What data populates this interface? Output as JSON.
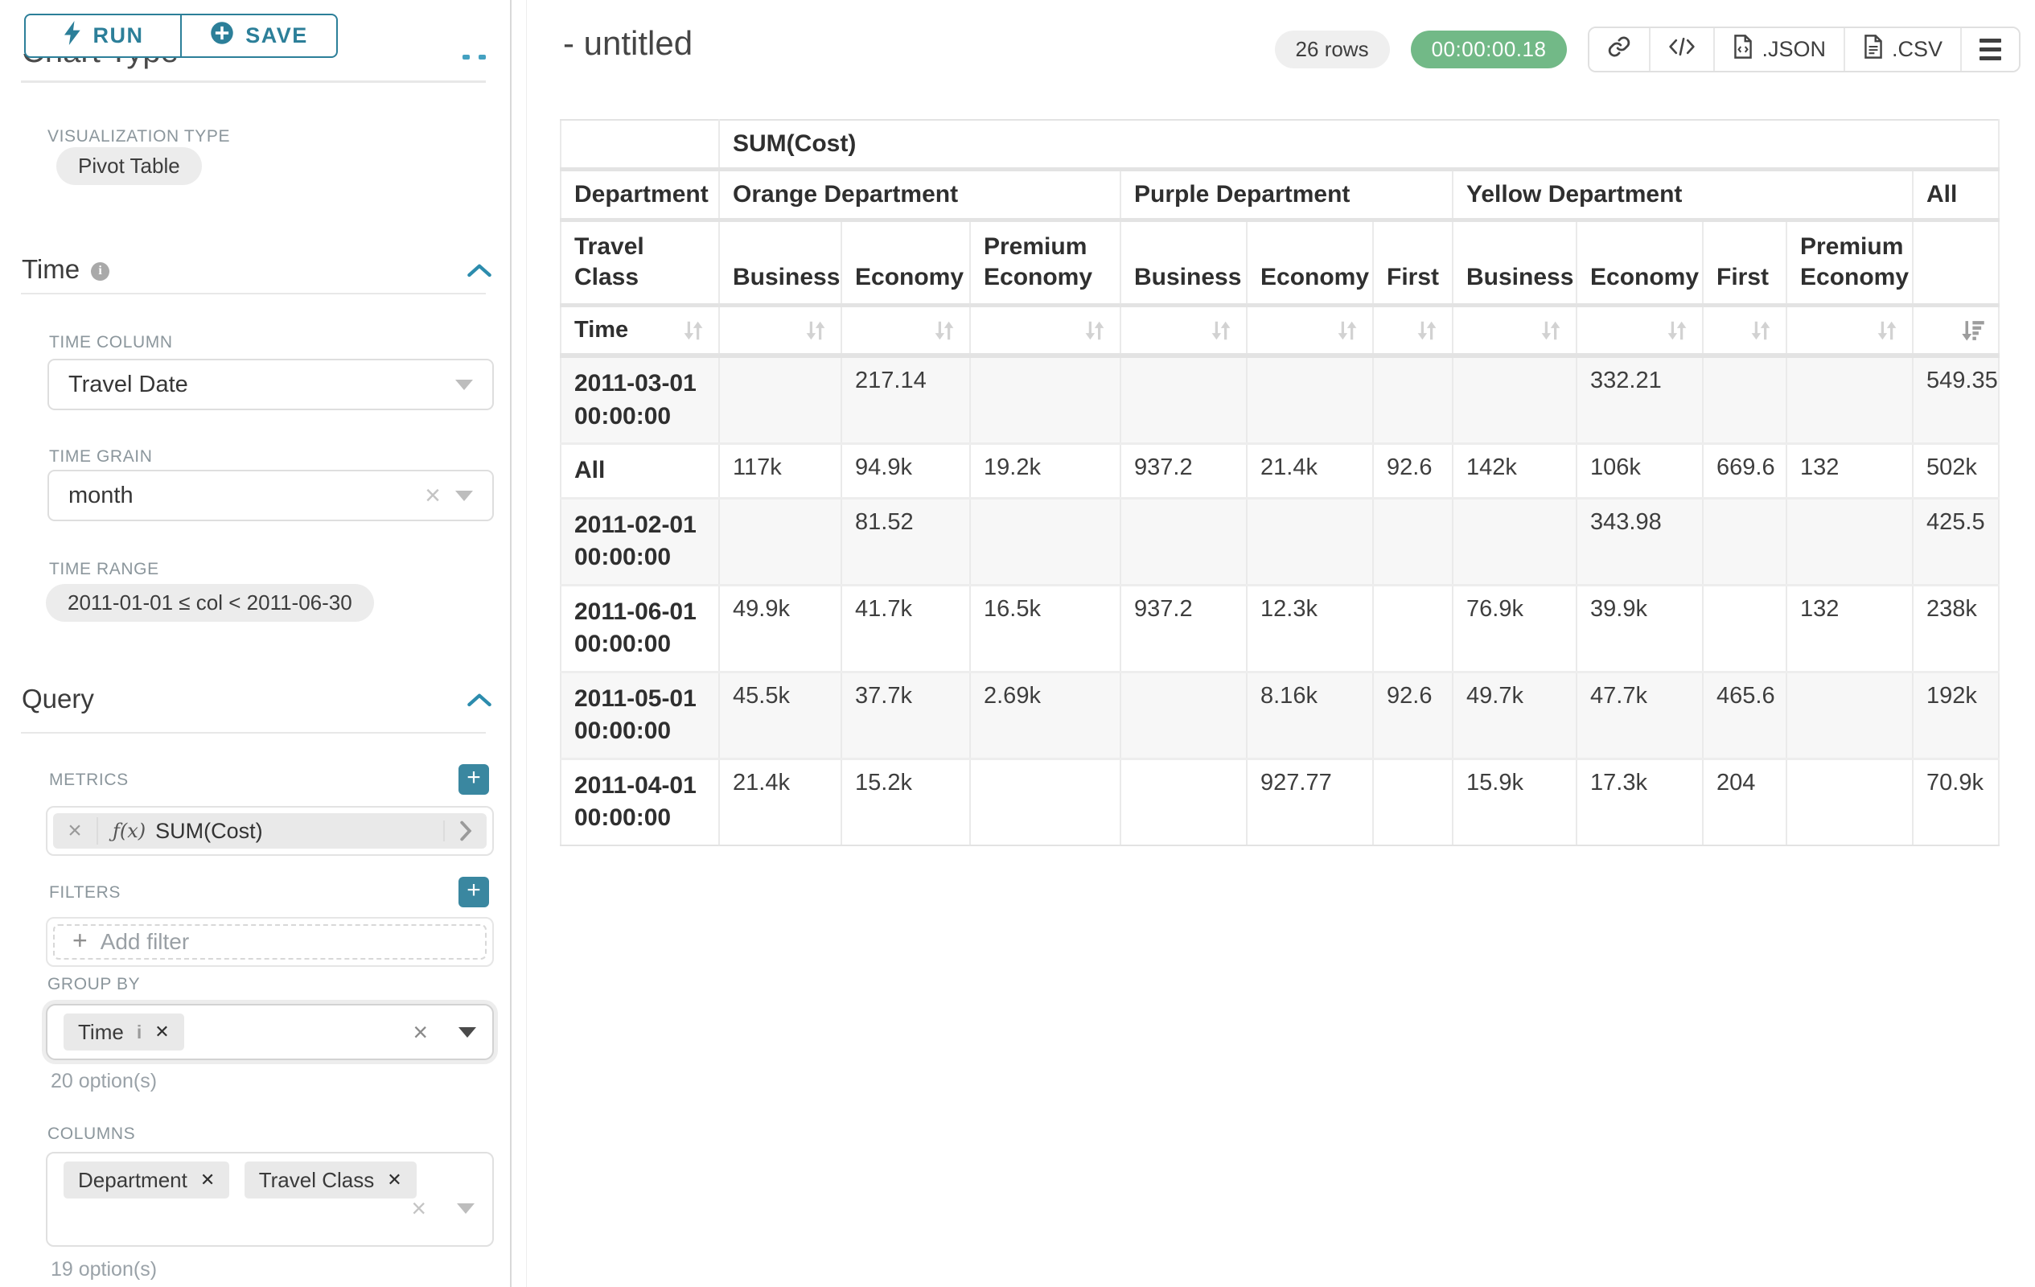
{
  "sidebar": {
    "run_button": "RUN",
    "save_button": "SAVE",
    "chart_type_heading": "Chart Type",
    "viz_label": "VISUALIZATION TYPE",
    "viz_value": "Pivot Table",
    "time": {
      "title": "Time",
      "time_column_label": "TIME COLUMN",
      "time_column_value": "Travel Date",
      "time_grain_label": "TIME GRAIN",
      "time_grain_value": "month",
      "time_range_label": "TIME RANGE",
      "time_range_value": "2011-01-01 ≤ col < 2011-06-30"
    },
    "query": {
      "title": "Query",
      "metrics_label": "METRICS",
      "metric_fx": "ƒ(x)",
      "metric_value": "SUM(Cost)",
      "filters_label": "FILTERS",
      "add_filter_label": "Add filter",
      "group_by_label": "GROUP BY",
      "group_by_chips": [
        "Time"
      ],
      "group_by_count": "20 option(s)",
      "columns_label": "COLUMNS",
      "columns_chips": [
        "Department",
        "Travel Class"
      ],
      "columns_count": "19 option(s)"
    }
  },
  "main": {
    "title": "- untitled",
    "rows_badge": "26 rows",
    "timer_badge": "00:00:00.18",
    "json_label": ".JSON",
    "csv_label": ".CSV"
  },
  "chart_data": {
    "type": "table",
    "metric_header": "SUM(Cost)",
    "dimension_labels": {
      "department": "Department",
      "travel_class": "Travel Class",
      "time": "Time"
    },
    "column_groups": [
      {
        "label": "Orange Department",
        "classes": [
          "Business",
          "Economy",
          "Premium Economy"
        ]
      },
      {
        "label": "Purple Department",
        "classes": [
          "Business",
          "Economy",
          "First"
        ]
      },
      {
        "label": "Yellow Department",
        "classes": [
          "Business",
          "Economy",
          "First",
          "Premium Economy"
        ]
      },
      {
        "label": "All",
        "classes": [
          ""
        ]
      }
    ],
    "rows": [
      {
        "label": "2011-03-01 00:00:00",
        "values": [
          "",
          "217.14",
          "",
          "",
          "",
          "",
          "",
          "332.21",
          "",
          "",
          "549.35"
        ]
      },
      {
        "label": "All",
        "values": [
          "117k",
          "94.9k",
          "19.2k",
          "937.2",
          "21.4k",
          "92.6",
          "142k",
          "106k",
          "669.6",
          "132",
          "502k"
        ]
      },
      {
        "label": "2011-02-01 00:00:00",
        "values": [
          "",
          "81.52",
          "",
          "",
          "",
          "",
          "",
          "343.98",
          "",
          "",
          "425.5"
        ]
      },
      {
        "label": "2011-06-01 00:00:00",
        "values": [
          "49.9k",
          "41.7k",
          "16.5k",
          "937.2",
          "12.3k",
          "",
          "76.9k",
          "39.9k",
          "",
          "132",
          "238k"
        ]
      },
      {
        "label": "2011-05-01 00:00:00",
        "values": [
          "45.5k",
          "37.7k",
          "2.69k",
          "",
          "8.16k",
          "92.6",
          "49.7k",
          "47.7k",
          "465.6",
          "",
          "192k"
        ]
      },
      {
        "label": "2011-04-01 00:00:00",
        "values": [
          "21.4k",
          "15.2k",
          "",
          "",
          "927.77",
          "",
          "15.9k",
          "17.3k",
          "204",
          "",
          "70.9k"
        ]
      }
    ]
  }
}
